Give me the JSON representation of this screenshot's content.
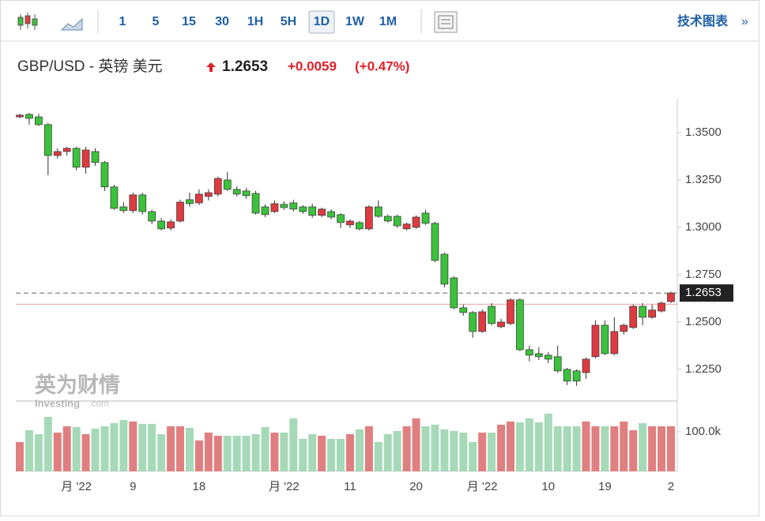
{
  "toolbar": {
    "intervals": [
      "1",
      "5",
      "15",
      "30",
      "1H",
      "5H",
      "1D",
      "1W",
      "1M"
    ],
    "selected": "1D",
    "link": "技术图表",
    "link_arrow": "»"
  },
  "header": {
    "symbol": "GBP/USD - 英镑 美元",
    "change": "+0.0059",
    "change_pct": "(+0.47%)"
  },
  "watermark": {
    "brand": "英为财情",
    "site": "Investing",
    "domain": ".com"
  },
  "chart_data": {
    "type": "candlestick",
    "categories": [
      null,
      null,
      null,
      null,
      null,
      null,
      "月 '22",
      null,
      null,
      null,
      null,
      null,
      "9",
      null,
      null,
      null,
      null,
      null,
      null,
      "18",
      null,
      null,
      null,
      null,
      null,
      null,
      null,
      null,
      "月 '22",
      null,
      null,
      null,
      null,
      null,
      null,
      "11",
      null,
      null,
      null,
      null,
      null,
      null,
      "20",
      null,
      null,
      null,
      null,
      null,
      null,
      "月 '22",
      null,
      null,
      null,
      null,
      null,
      null,
      "10",
      null,
      null,
      null,
      null,
      null,
      "19",
      null,
      null,
      null,
      null,
      null,
      null,
      "2"
    ],
    "open": [
      1.3583,
      1.3596,
      1.3583,
      1.3542,
      1.3379,
      1.34,
      1.3417,
      1.3317,
      1.34,
      1.3342,
      1.3213,
      1.3108,
      1.3088,
      1.3171,
      1.3083,
      1.3033,
      1.2996,
      1.3033,
      1.3146,
      1.3129,
      1.3163,
      1.3175,
      1.325,
      1.32,
      1.3192,
      1.3179,
      1.3108,
      1.3083,
      1.3121,
      1.3129,
      1.3108,
      1.3108,
      1.3063,
      1.3083,
      1.3067,
      1.3013,
      1.3025,
      1.2992,
      1.3108,
      1.3058,
      1.3058,
      1.2992,
      1.3,
      1.3075,
      1.3021,
      1.2858,
      1.2733,
      1.2575,
      1.255,
      1.245,
      1.2583,
      1.2475,
      1.2492,
      1.2617,
      1.2354,
      1.2333,
      1.2325,
      1.2317,
      1.225,
      1.2242,
      1.2233,
      1.2317,
      1.2483,
      1.2333,
      1.245,
      1.2471,
      1.2583,
      1.2525,
      1.2558,
      1.2608
    ],
    "high": [
      1.36,
      1.3604,
      1.36,
      1.355,
      1.3417,
      1.3425,
      1.3425,
      1.3425,
      1.3417,
      1.335,
      1.3225,
      1.3133,
      1.3183,
      1.3183,
      1.3092,
      1.305,
      1.3042,
      1.3146,
      1.3183,
      1.32,
      1.32,
      1.3267,
      1.3292,
      1.3217,
      1.3208,
      1.3192,
      1.3121,
      1.3142,
      1.3138,
      1.3146,
      1.3117,
      1.3125,
      1.3104,
      1.3096,
      1.3075,
      1.3042,
      1.3033,
      1.3117,
      1.3142,
      1.3067,
      1.3067,
      1.3025,
      1.3063,
      1.3092,
      1.3029,
      1.2867,
      1.2742,
      1.2592,
      1.2558,
      1.2567,
      1.26,
      1.2517,
      1.2625,
      1.2625,
      1.2375,
      1.2367,
      1.2342,
      1.2375,
      1.2258,
      1.225,
      1.2313,
      1.2508,
      1.2508,
      1.2525,
      1.2492,
      1.2592,
      1.26,
      1.2592,
      1.2608,
      1.2661
    ],
    "low": [
      1.3575,
      1.3542,
      1.3533,
      1.3275,
      1.3363,
      1.3379,
      1.33,
      1.3283,
      1.3325,
      1.3192,
      1.3092,
      1.3075,
      1.3075,
      1.3067,
      1.3017,
      1.2983,
      1.2983,
      1.3025,
      1.3108,
      1.3117,
      1.3142,
      1.3163,
      1.3192,
      1.3163,
      1.315,
      1.3067,
      1.3054,
      1.3075,
      1.3092,
      1.3083,
      1.3071,
      1.305,
      1.3054,
      1.3042,
      1.2996,
      1.2996,
      1.2983,
      1.2983,
      1.305,
      1.3025,
      1.2996,
      1.2983,
      1.2992,
      1.3013,
      1.2817,
      1.2683,
      1.2567,
      1.2533,
      1.2417,
      1.2442,
      1.2483,
      1.2467,
      1.2483,
      1.2346,
      1.2292,
      1.23,
      1.2283,
      1.2233,
      1.2167,
      1.2163,
      1.22,
      1.2308,
      1.2325,
      1.2325,
      1.2433,
      1.2463,
      1.2483,
      1.2517,
      1.255,
      1.26
    ],
    "close": [
      1.3592,
      1.3575,
      1.3542,
      1.3379,
      1.34,
      1.3417,
      1.3317,
      1.3408,
      1.3342,
      1.3213,
      1.31,
      1.3088,
      1.3171,
      1.3083,
      1.3033,
      1.2992,
      1.3029,
      1.3133,
      1.3125,
      1.3175,
      1.3183,
      1.3258,
      1.32,
      1.3175,
      1.3167,
      1.3075,
      1.3067,
      1.3125,
      1.3104,
      1.3096,
      1.3083,
      1.3063,
      1.3096,
      1.3054,
      1.3025,
      1.3033,
      1.2992,
      1.3108,
      1.3058,
      1.3033,
      1.3008,
      1.3017,
      1.3054,
      1.3021,
      1.2825,
      1.27,
      1.2575,
      1.255,
      1.245,
      1.2554,
      1.2492,
      1.25,
      1.2617,
      1.2354,
      1.2325,
      1.2317,
      1.2304,
      1.2242,
      1.2188,
      1.2188,
      1.2304,
      1.2483,
      1.2333,
      1.245,
      1.2483,
      1.2583,
      1.2525,
      1.2563,
      1.26,
      1.2653
    ],
    "volume": [
      74000,
      104000,
      94000,
      138000,
      98000,
      114000,
      112000,
      94000,
      108000,
      114000,
      122000,
      130000,
      126000,
      120000,
      120000,
      94000,
      114000,
      114000,
      110000,
      78000,
      98000,
      90000,
      90000,
      90000,
      90000,
      94000,
      112000,
      98000,
      98000,
      134000,
      82000,
      94000,
      90000,
      82000,
      82000,
      94000,
      106000,
      114000,
      74000,
      94000,
      102000,
      114000,
      134000,
      114000,
      118000,
      106000,
      102000,
      98000,
      74000,
      98000,
      98000,
      118000,
      126000,
      124000,
      134000,
      124000,
      146000,
      114000,
      114000,
      114000,
      126000,
      114000,
      114000,
      114000,
      126000,
      104000,
      122000,
      114000,
      114000,
      114000
    ],
    "ylim": [
      1.2083,
      1.3679
    ],
    "yticks": [
      {
        "value": 1.35,
        "label": "1.3500"
      },
      {
        "value": 1.325,
        "label": "1.3250"
      },
      {
        "value": 1.3,
        "label": "1.3000"
      },
      {
        "value": 1.275,
        "label": "1.2750"
      },
      {
        "value": 1.25,
        "label": "1.2500"
      },
      {
        "value": 1.225,
        "label": "1.2250"
      }
    ],
    "volume_lim": [
      0,
      174000
    ],
    "volume_ticks": [
      {
        "value": 100000,
        "label": "100.0k"
      }
    ],
    "last_price": {
      "value": 1.2653,
      "label": "1.2653"
    },
    "prev_close": 1.2594,
    "up_color": "#dd3b40",
    "down_color": "#3cc13c",
    "volume_up_color": "#e07f80",
    "volume_down_color": "#a6d9b8"
  }
}
